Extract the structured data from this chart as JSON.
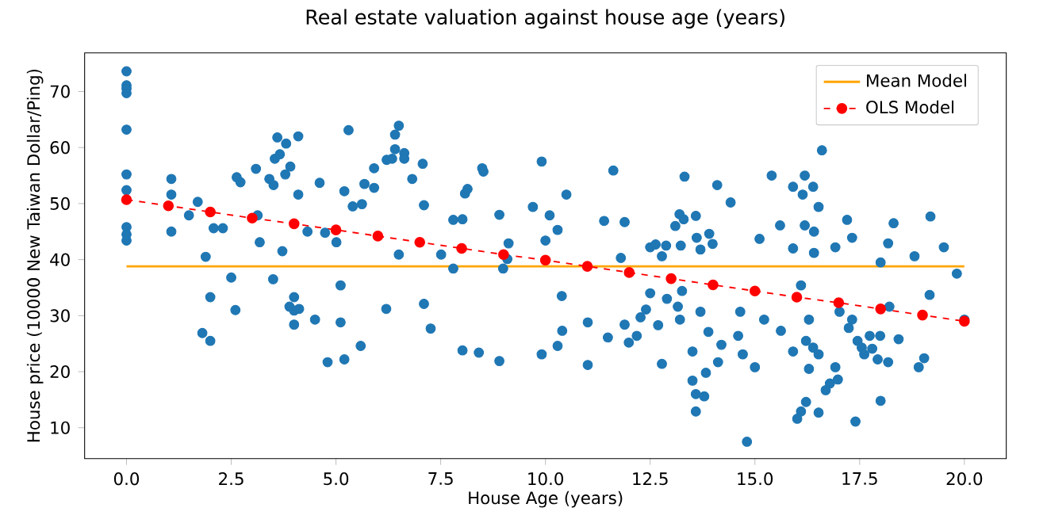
{
  "chart_data": {
    "type": "scatter",
    "title": "Real estate valuation against house age (years)",
    "xlabel": "House Age (years)",
    "ylabel": "House price (10000 New Taiwan Dollar/Ping)",
    "xlim": [
      -1.0,
      21.0
    ],
    "ylim": [
      4.5,
      76.9
    ],
    "xticks": [
      {
        "value": 0,
        "label": "0.0"
      },
      {
        "value": 2.5,
        "label": "2.5"
      },
      {
        "value": 5,
        "label": "5.0"
      },
      {
        "value": 7.5,
        "label": "7.5"
      },
      {
        "value": 10,
        "label": "10.0"
      },
      {
        "value": 12.5,
        "label": "12.5"
      },
      {
        "value": 15,
        "label": "15.0"
      },
      {
        "value": 17.5,
        "label": "17.5"
      },
      {
        "value": 20,
        "label": "20.0"
      }
    ],
    "yticks": [
      10,
      20,
      30,
      40,
      50,
      60,
      70
    ],
    "legend": "top right",
    "grid": false,
    "series": [
      {
        "color": "#1f77b4",
        "marker": "circle",
        "x": [
          0,
          0,
          0,
          0,
          0,
          0,
          0,
          0,
          0,
          0,
          1.07,
          1.07,
          1.07,
          1.49,
          1.7,
          1.89,
          2.08,
          2.3,
          2.63,
          2.72,
          3.09,
          3.13,
          3.18,
          3.41,
          3.51,
          3.54,
          3.6,
          3.66,
          3.72,
          3.79,
          3.81,
          3.91,
          4.1,
          4.1,
          4.32,
          4.61,
          4.74,
          5.01,
          5.2,
          5.3,
          5.4,
          5.62,
          5.68,
          5.91,
          5.91,
          6.21,
          6.34,
          6.41,
          6.41,
          6.5,
          6.5,
          6.63,
          6.63,
          6.82,
          7.07,
          7.1,
          7.51,
          7.8,
          8.02,
          8.08,
          8.14,
          8.49,
          8.52,
          8.9,
          9.12,
          9.09,
          1.81,
          2.0,
          2.0,
          2.5,
          2.6,
          3.5,
          3.89,
          4.0,
          4.0,
          4.0,
          4.12,
          4.5,
          4.8,
          5.11,
          5.11,
          5.2,
          5.59,
          6.2,
          7.1,
          7.26,
          7.8,
          8.02,
          8.41,
          8.9,
          8.99,
          9.91,
          9.7,
          10.1,
          10.29,
          10.0,
          10.5,
          11.62,
          11.4,
          11.89,
          11.8,
          12.5,
          12.63,
          12.88,
          12.78,
          13.2,
          13.3,
          13.1,
          13.23,
          13.32,
          13.59,
          13.61,
          13.7,
          13.91,
          13.99,
          14.1,
          14.42,
          15.11,
          15.4,
          15.6,
          15.91,
          15.91,
          16.19,
          16.14,
          16.39,
          16.6,
          16.52,
          16.19,
          16.41,
          16.41,
          16.92,
          17.2,
          17.32,
          18.31,
          18.18,
          18.81,
          19.19,
          19.51,
          18.0,
          9.91,
          10.29,
          10.4,
          10.39,
          11.01,
          11.01,
          11.49,
          11.89,
          11.99,
          12.18,
          12.27,
          12.4,
          12.5,
          12.69,
          12.78,
          12.9,
          13.16,
          13.21,
          13.26,
          13.51,
          13.51,
          13.7,
          13.59,
          13.59,
          13.83,
          13.79,
          13.89,
          14.12,
          14.2,
          14.6,
          14.71,
          14.65,
          15.0,
          14.81,
          15.22,
          15.62,
          15.91,
          16.1,
          16.22,
          16.29,
          16.29,
          16.39,
          16.52,
          16.01,
          16.1,
          16.22,
          16.52,
          16.69,
          16.79,
          16.98,
          16.92,
          17.02,
          17.24,
          17.32,
          17.4,
          17.45,
          17.55,
          17.61,
          17.74,
          17.8,
          17.93,
          18.0,
          17.99,
          18.18,
          18.21,
          18.43,
          18.91,
          19.04,
          19.17,
          19.82,
          20.0
        ],
        "values": [
          73.6,
          71.1,
          70.5,
          69.7,
          63.2,
          55.2,
          52.4,
          45.8,
          44.5,
          43.4,
          54.4,
          51.6,
          45.0,
          47.9,
          50.3,
          40.5,
          45.6,
          45.6,
          54.7,
          53.8,
          56.2,
          47.9,
          43.1,
          54.4,
          53.3,
          58.0,
          61.8,
          58.8,
          41.5,
          55.2,
          60.7,
          56.6,
          62.0,
          51.6,
          45.0,
          53.7,
          44.8,
          43.1,
          52.2,
          63.1,
          49.5,
          49.9,
          53.5,
          52.8,
          56.3,
          57.8,
          58.0,
          59.7,
          62.3,
          63.9,
          40.9,
          59.0,
          58.0,
          54.4,
          57.1,
          49.7,
          40.9,
          47.1,
          47.2,
          51.8,
          52.6,
          56.3,
          55.7,
          48.0,
          42.9,
          40.1,
          26.9,
          33.3,
          25.5,
          36.8,
          31.0,
          36.5,
          31.6,
          33.3,
          30.9,
          28.4,
          31.2,
          29.3,
          21.7,
          35.4,
          28.8,
          22.2,
          24.6,
          31.2,
          32.1,
          27.7,
          38.4,
          23.8,
          23.4,
          21.9,
          38.4,
          57.5,
          49.4,
          47.9,
          45.3,
          43.4,
          51.6,
          55.9,
          46.9,
          46.7,
          40.3,
          42.2,
          42.7,
          42.5,
          40.6,
          48.1,
          47.2,
          46.0,
          42.5,
          54.8,
          47.8,
          43.9,
          41.8,
          44.6,
          42.8,
          53.3,
          50.2,
          43.7,
          55.0,
          46.1,
          42.0,
          53.0,
          55.0,
          51.6,
          53.0,
          59.5,
          49.4,
          46.1,
          45.0,
          41.2,
          42.2,
          47.1,
          43.9,
          46.5,
          42.9,
          40.6,
          47.7,
          42.2,
          39.5,
          23.1,
          24.6,
          27.3,
          33.5,
          28.8,
          21.2,
          26.1,
          28.4,
          25.2,
          26.4,
          29.7,
          31.1,
          34.0,
          28.3,
          21.4,
          33.0,
          31.6,
          29.3,
          34.4,
          23.6,
          18.4,
          30.7,
          16.0,
          12.9,
          19.8,
          15.6,
          27.1,
          21.7,
          24.8,
          26.4,
          23.1,
          30.7,
          20.8,
          7.5,
          29.3,
          27.3,
          23.6,
          35.4,
          25.5,
          29.3,
          20.5,
          24.3,
          23.1,
          11.6,
          12.9,
          14.6,
          12.7,
          16.7,
          17.9,
          18.6,
          20.8,
          30.7,
          27.8,
          29.3,
          11.1,
          25.5,
          24.3,
          23.1,
          26.4,
          24.1,
          22.2,
          14.8,
          26.4,
          21.7,
          31.6,
          25.8,
          20.8,
          22.4,
          33.7,
          37.5,
          29.3
        ]
      },
      {
        "type": "line",
        "name": "Mean Model",
        "color": "#ffa500",
        "marker": "none",
        "line_style": "solid",
        "x": [
          0,
          20
        ],
        "values": [
          38.8,
          38.8
        ]
      },
      {
        "type": "line",
        "name": "OLS Model",
        "color": "#ff0000",
        "marker": "circle",
        "line_style": "dashed",
        "x": [
          0,
          1,
          2,
          3,
          4,
          5,
          6,
          7,
          8,
          9,
          10,
          11,
          12,
          13,
          14,
          15,
          16,
          17,
          18,
          19,
          20
        ],
        "values": [
          50.7,
          49.6,
          48.5,
          47.4,
          46.4,
          45.3,
          44.2,
          43.1,
          42.0,
          40.9,
          39.9,
          38.8,
          37.7,
          36.6,
          35.5,
          34.4,
          33.3,
          32.3,
          31.2,
          30.1,
          29.0
        ]
      }
    ]
  }
}
